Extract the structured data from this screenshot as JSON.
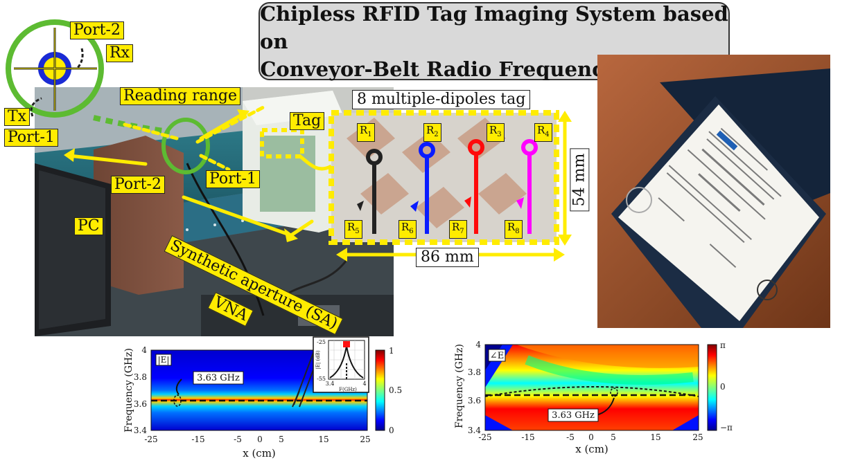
{
  "title": {
    "line1": "Chipless RFID Tag Imaging System based on",
    "line2": "Conveyor-Belt Radio Frequency Scanning"
  },
  "setup_labels": {
    "port2_top": "Port-2",
    "rx": "Rx",
    "tx": "Tx",
    "port1_left": "Port-1",
    "reading_range": "Reading range",
    "tag": "Tag",
    "port2_mid": "Port-2",
    "port1_mid": "Port-1",
    "pc": "PC",
    "synthetic_aperture": "Synthetic aperture (SA)",
    "vna": "VNA"
  },
  "tag_panel": {
    "heading": "8 multiple-dipoles tag",
    "width_label": "86 mm",
    "height_label": "54 mm",
    "resonators": [
      {
        "id": "R",
        "sub": "1",
        "color": "#222222"
      },
      {
        "id": "R",
        "sub": "2",
        "color": "#0a1cff"
      },
      {
        "id": "R",
        "sub": "3",
        "color": "#ff0a0a"
      },
      {
        "id": "R",
        "sub": "4",
        "color": "#ff00ff"
      },
      {
        "id": "R",
        "sub": "5"
      },
      {
        "id": "R",
        "sub": "6"
      },
      {
        "id": "R",
        "sub": "7"
      },
      {
        "id": "R",
        "sub": "8"
      }
    ]
  },
  "chart_data": [
    {
      "type": "heatmap",
      "title": "",
      "panel_label": "|E|",
      "xlabel": "x (cm)",
      "ylabel": "Frequency (GHz)",
      "xlim": [
        -25,
        25
      ],
      "ylim": [
        3.4,
        4
      ],
      "xticks": [
        "-25",
        "-15",
        "-5",
        "0",
        "5",
        "15",
        "25"
      ],
      "yticks": [
        "4",
        "3.8",
        "3.6",
        "3.4"
      ],
      "colorbar": {
        "range": [
          0,
          1
        ],
        "ticks": [
          "1",
          "0.5",
          "0"
        ]
      },
      "resonance_ghz": 3.63,
      "annotation": "3.63 GHz",
      "inset": {
        "ylabel": "|E| (dB)",
        "xlabel": "F(GHz)",
        "xticks": [
          "3.4",
          "4"
        ],
        "yticks": [
          "-25",
          "-55"
        ],
        "peak_ghz": 3.63
      }
    },
    {
      "type": "heatmap",
      "title": "",
      "panel_label": "∠E",
      "xlabel": "x (cm)",
      "ylabel": "Frequency (GHz)",
      "xlim": [
        -25,
        25
      ],
      "ylim": [
        3.4,
        4
      ],
      "xticks": [
        "-25",
        "-15",
        "-5",
        "0",
        "5",
        "15",
        "25"
      ],
      "yticks": [
        "4",
        "3.8",
        "3.6",
        "3.4"
      ],
      "colorbar": {
        "range": [
          "-π",
          "π"
        ],
        "ticks": [
          "π",
          "0",
          "−π"
        ]
      },
      "resonance_ghz": 3.63,
      "annotation": "3.63 GHz"
    }
  ]
}
